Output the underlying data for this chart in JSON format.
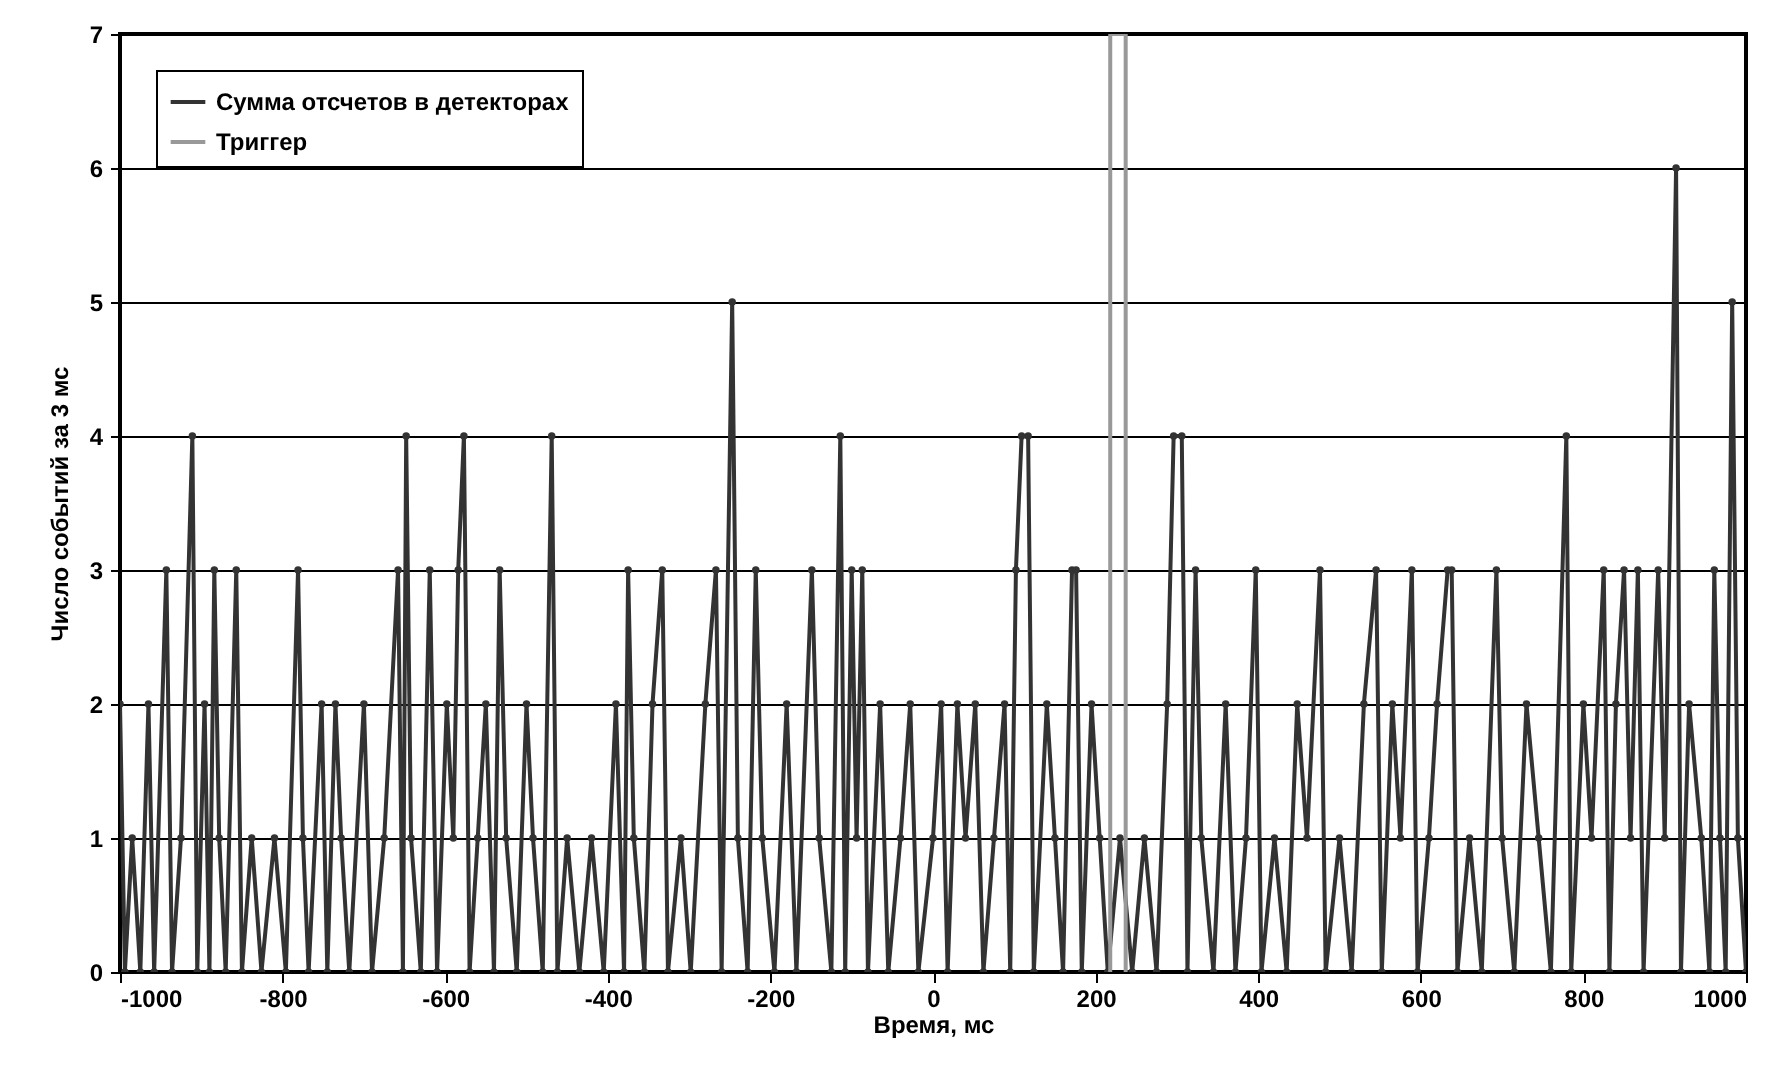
{
  "chart_data": {
    "type": "line",
    "xlabel": "Время, мс",
    "ylabel": "Число событий за 3 мс",
    "xlim": [
      -1000,
      1000
    ],
    "xticks": [
      -1000,
      -800,
      -600,
      -400,
      -200,
      0,
      200,
      400,
      600,
      800,
      1000
    ],
    "ylim": [
      0,
      7
    ],
    "yticks": [
      0,
      1,
      2,
      3,
      4,
      5,
      6,
      7
    ],
    "grid": "y",
    "legend": "top left",
    "series": [
      {
        "name": "Сумма отсчетов в детекторах",
        "color": "#333333",
        "marker": "circle",
        "x": [
          -1000,
          -994,
          -985,
          -975,
          -965,
          -958,
          -943,
          -936,
          -925,
          -911,
          -905,
          -896,
          -890,
          -884,
          -878,
          -870,
          -857,
          -850,
          -838,
          -826,
          -810,
          -796,
          -781,
          -775,
          -768,
          -752,
          -745,
          -735,
          -728,
          -718,
          -700,
          -690,
          -675,
          -658,
          -652,
          -648,
          -642,
          -630,
          -619,
          -610,
          -598,
          -590,
          -584,
          -577,
          -570,
          -560,
          -550,
          -540,
          -533,
          -525,
          -512,
          -500,
          -492,
          -480,
          -469,
          -462,
          -450,
          -435,
          -420,
          -405,
          -390,
          -380,
          -375,
          -368,
          -355,
          -345,
          -333,
          -326,
          -310,
          -298,
          -280,
          -267,
          -260,
          -247,
          -240,
          -228,
          -218,
          -210,
          -195,
          -180,
          -168,
          -149,
          -140,
          -125,
          -114,
          -108,
          -100,
          -94,
          -87,
          -80,
          -65,
          -55,
          -40,
          -28,
          -18,
          0,
          10,
          18,
          30,
          40,
          52,
          62,
          75,
          88,
          95,
          102,
          109,
          117,
          124,
          140,
          150,
          160,
          171,
          176,
          183,
          195,
          205,
          215,
          230,
          245,
          260,
          275,
          288,
          296,
          306,
          313,
          323,
          330,
          345,
          360,
          372,
          385,
          397,
          404,
          420,
          435,
          448,
          460,
          476,
          483,
          500,
          515,
          530,
          545,
          552,
          565,
          575,
          589,
          596,
          610,
          620,
          633,
          638,
          645,
          660,
          675,
          693,
          700,
          715,
          730,
          745,
          760,
          779,
          785,
          800,
          810,
          825,
          832,
          840,
          850,
          858,
          867,
          874,
          892,
          900,
          914,
          920,
          930,
          945,
          955,
          961,
          968,
          975,
          983,
          990,
          1000
        ],
        "values": [
          2,
          0,
          1,
          0,
          2,
          0,
          3,
          0,
          1,
          4,
          0,
          2,
          0,
          3,
          1,
          0,
          3,
          0,
          1,
          0,
          1,
          0,
          3,
          1,
          0,
          2,
          0,
          2,
          1,
          0,
          2,
          0,
          1,
          3,
          0,
          4,
          1,
          0,
          3,
          0,
          2,
          1,
          3,
          4,
          0,
          1,
          2,
          0,
          3,
          1,
          0,
          2,
          1,
          0,
          4,
          0,
          1,
          0,
          1,
          0,
          2,
          0,
          3,
          1,
          0,
          2,
          3,
          0,
          1,
          0,
          2,
          3,
          0,
          5,
          1,
          0,
          3,
          1,
          0,
          2,
          0,
          3,
          1,
          0,
          4,
          0,
          3,
          1,
          3,
          0,
          2,
          0,
          1,
          2,
          0,
          1,
          2,
          0,
          2,
          1,
          2,
          0,
          1,
          2,
          0,
          3,
          4,
          4,
          0,
          2,
          1,
          0,
          3,
          3,
          0,
          2,
          1,
          0,
          1,
          0,
          1,
          0,
          2,
          4,
          4,
          0,
          3,
          1,
          0,
          2,
          0,
          1,
          3,
          0,
          1,
          0,
          2,
          1,
          3,
          0,
          1,
          0,
          2,
          3,
          0,
          2,
          1,
          3,
          0,
          1,
          2,
          3,
          3,
          0,
          1,
          0,
          3,
          1,
          0,
          2,
          1,
          0,
          4,
          0,
          2,
          1,
          3,
          0,
          2,
          3,
          1,
          3,
          0,
          3,
          1,
          6,
          0,
          2,
          1,
          0,
          3,
          1,
          0,
          5,
          1,
          0
        ]
      },
      {
        "name": "Триггер",
        "color": "#999999",
        "marker": "none",
        "x": [
          218,
          218,
          237,
          237
        ],
        "values": [
          0,
          7,
          7,
          0
        ]
      }
    ]
  }
}
